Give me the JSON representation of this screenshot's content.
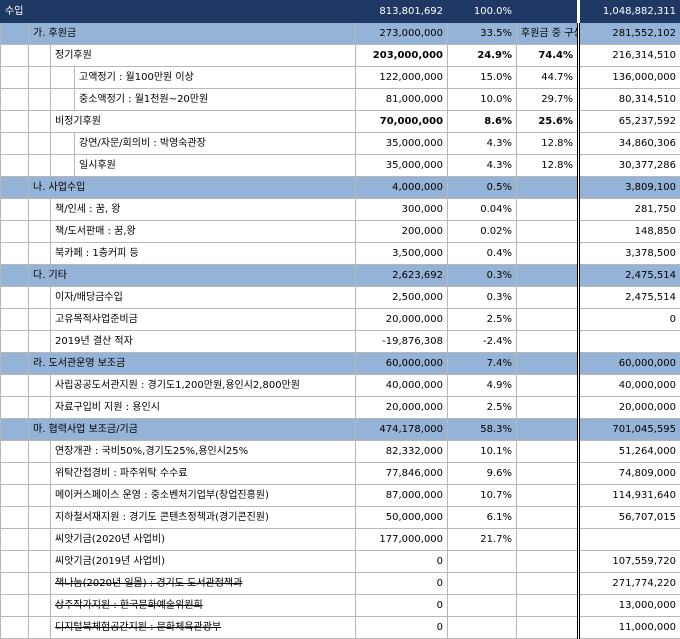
{
  "rows": [
    {
      "type": "head",
      "indent": 0,
      "label": "수입",
      "amount": "813,801,692",
      "pct": "100.0%",
      "ratio": "",
      "prev": "1,048,882,311",
      "bold": false,
      "strike": false
    },
    {
      "type": "sect",
      "indent": 1,
      "label": "가. 후원금",
      "amount": "273,000,000",
      "pct": "33.5%",
      "ratio": "후원금 중 구성비",
      "prev": "281,552,102",
      "bold": false,
      "strike": false
    },
    {
      "type": "item",
      "indent": 2,
      "label": "정기후원",
      "amount": "203,000,000",
      "pct": "24.9%",
      "ratio": "74.4%",
      "prev": "216,314,510",
      "bold": true,
      "strike": false
    },
    {
      "type": "item",
      "indent": 3,
      "label": "고액정기 : 월100만원 이상",
      "amount": "122,000,000",
      "pct": "15.0%",
      "ratio": "44.7%",
      "prev": "136,000,000",
      "bold": false,
      "strike": false
    },
    {
      "type": "item",
      "indent": 3,
      "label": "중소액정기 : 월1천원~20만원",
      "amount": "81,000,000",
      "pct": "10.0%",
      "ratio": "29.7%",
      "prev": "80,314,510",
      "bold": false,
      "strike": false
    },
    {
      "type": "item",
      "indent": 2,
      "label": "비정기후원",
      "amount": "70,000,000",
      "pct": "8.6%",
      "ratio": "25.6%",
      "prev": "65,237,592",
      "bold": true,
      "strike": false
    },
    {
      "type": "item",
      "indent": 3,
      "label": "강연/자문/회의비 : 박영숙관장",
      "amount": "35,000,000",
      "pct": "4.3%",
      "ratio": "12.8%",
      "prev": "34,860,306",
      "bold": false,
      "strike": false
    },
    {
      "type": "item",
      "indent": 3,
      "label": "일시후원",
      "amount": "35,000,000",
      "pct": "4.3%",
      "ratio": "12.8%",
      "prev": "30,377,286",
      "bold": false,
      "strike": false
    },
    {
      "type": "sect",
      "indent": 1,
      "label": "나. 사업수입",
      "amount": "4,000,000",
      "pct": "0.5%",
      "ratio": "",
      "prev": "3,809,100",
      "bold": false,
      "strike": false
    },
    {
      "type": "item",
      "indent": 2,
      "label": "책/인세 : 꿈, 왕",
      "amount": "300,000",
      "pct": "0.04%",
      "ratio": "",
      "prev": "281,750",
      "bold": false,
      "strike": false
    },
    {
      "type": "item",
      "indent": 2,
      "label": "책/도서판매 : 꿈,왕",
      "amount": "200,000",
      "pct": "0.02%",
      "ratio": "",
      "prev": "148,850",
      "bold": false,
      "strike": false
    },
    {
      "type": "item",
      "indent": 2,
      "label": "북카페 : 1층커피 등",
      "amount": "3,500,000",
      "pct": "0.4%",
      "ratio": "",
      "prev": "3,378,500",
      "bold": false,
      "strike": false
    },
    {
      "type": "sect",
      "indent": 1,
      "label": "다. 기타",
      "amount": "2,623,692",
      "pct": "0.3%",
      "ratio": "",
      "prev": "2,475,514",
      "bold": false,
      "strike": false
    },
    {
      "type": "item",
      "indent": 2,
      "label": "이자/배당금수입",
      "amount": "2,500,000",
      "pct": "0.3%",
      "ratio": "",
      "prev": "2,475,514",
      "bold": false,
      "strike": false
    },
    {
      "type": "item",
      "indent": 2,
      "label": "고유목적사업준비금",
      "amount": "20,000,000",
      "pct": "2.5%",
      "ratio": "",
      "prev": "0",
      "bold": false,
      "strike": false
    },
    {
      "type": "item",
      "indent": 2,
      "label": "2019년 결산 적자",
      "amount": "-19,876,308",
      "pct": "-2.4%",
      "ratio": "",
      "prev": "",
      "bold": false,
      "strike": false
    },
    {
      "type": "sect",
      "indent": 1,
      "label": "라. 도서관운영 보조금",
      "amount": "60,000,000",
      "pct": "7.4%",
      "ratio": "",
      "prev": "60,000,000",
      "bold": false,
      "strike": false
    },
    {
      "type": "item",
      "indent": 2,
      "label": "사립공공도서관지원 : 경기도1,200만원,용인시2,800만원",
      "amount": "40,000,000",
      "pct": "4.9%",
      "ratio": "",
      "prev": "40,000,000",
      "bold": false,
      "strike": false
    },
    {
      "type": "item",
      "indent": 2,
      "label": "자료구입비 지원 : 용인시",
      "amount": "20,000,000",
      "pct": "2.5%",
      "ratio": "",
      "prev": "20,000,000",
      "bold": false,
      "strike": false
    },
    {
      "type": "sect",
      "indent": 1,
      "label": "마. 협력사업 보조금/기금",
      "amount": "474,178,000",
      "pct": "58.3%",
      "ratio": "",
      "prev": "701,045,595",
      "bold": false,
      "strike": false
    },
    {
      "type": "item",
      "indent": 2,
      "label": "연장개관 : 국비50%,경기도25%,용인시25%",
      "amount": "82,332,000",
      "pct": "10.1%",
      "ratio": "",
      "prev": "51,264,000",
      "bold": false,
      "strike": false
    },
    {
      "type": "item",
      "indent": 2,
      "label": "위탁간접경비 : 파주위탁 수수료",
      "amount": "77,846,000",
      "pct": "9.6%",
      "ratio": "",
      "prev": "74,809,000",
      "bold": false,
      "strike": false
    },
    {
      "type": "item",
      "indent": 2,
      "label": "메이커스페이스 운영 : 중소벤처기업부(창업진흥원)",
      "amount": "87,000,000",
      "pct": "10.7%",
      "ratio": "",
      "prev": "114,931,640",
      "bold": false,
      "strike": false
    },
    {
      "type": "item",
      "indent": 2,
      "label": "지하철서재지원 : 경기도 콘텐츠정책과(경기콘진원)",
      "amount": "50,000,000",
      "pct": "6.1%",
      "ratio": "",
      "prev": "56,707,015",
      "bold": false,
      "strike": false
    },
    {
      "type": "item",
      "indent": 2,
      "label": "씨앗기금(2020년 사업비)",
      "amount": "177,000,000",
      "pct": "21.7%",
      "ratio": "",
      "prev": "",
      "bold": false,
      "strike": false
    },
    {
      "type": "item",
      "indent": 2,
      "label": "씨앗기금(2019년 사업비)",
      "amount": "0",
      "pct": "",
      "ratio": "",
      "prev": "107,559,720",
      "bold": false,
      "strike": false
    },
    {
      "type": "item",
      "indent": 2,
      "label": "책나눔(2020년 일몰) : 경기도 도서관정책과",
      "amount": "0",
      "pct": "",
      "ratio": "",
      "prev": "271,774,220",
      "bold": false,
      "strike": true
    },
    {
      "type": "item",
      "indent": 2,
      "label": "상주작가지원 : 한국문화예술위원회",
      "amount": "0",
      "pct": "",
      "ratio": "",
      "prev": "13,000,000",
      "bold": false,
      "strike": true
    },
    {
      "type": "item",
      "indent": 2,
      "label": "디지털북체험공간지원 : 문화체육관광부",
      "amount": "0",
      "pct": "",
      "ratio": "",
      "prev": "11,000,000",
      "bold": false,
      "strike": true
    }
  ]
}
